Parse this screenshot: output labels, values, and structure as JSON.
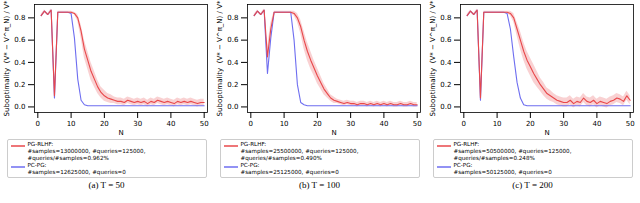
{
  "chart_data": [
    {
      "type": "line",
      "caption": "(a) T = 50",
      "x_label": "N",
      "y_label": "Suboptimality  (V* − V^π_N) / V*",
      "xlim": [
        -1,
        51
      ],
      "xticks": [
        0,
        10,
        20,
        30,
        40,
        50
      ],
      "ylim": [
        -0.05,
        0.92
      ],
      "yticks": [
        {
          "value": 0,
          "label": "0.0"
        },
        {
          "value": 0.2,
          "label": "0.2"
        },
        {
          "value": 0.4,
          "label": "0.4"
        },
        {
          "value": 0.6,
          "label": "0.6"
        },
        {
          "value": 0.8,
          "label": "0.8"
        }
      ],
      "x": [
        1,
        2,
        3,
        4,
        5,
        6,
        7,
        8,
        9,
        10,
        11,
        12,
        13,
        14,
        15,
        16,
        17,
        18,
        19,
        20,
        21,
        22,
        23,
        24,
        25,
        26,
        27,
        28,
        29,
        30,
        31,
        32,
        33,
        34,
        35,
        36,
        37,
        38,
        39,
        40,
        41,
        42,
        43,
        44,
        45,
        46,
        47,
        48,
        49,
        50
      ],
      "series": [
        {
          "name": "PG-RLHF:",
          "detail": "#samples=13000000, #queries=125000, #queries/#samples=0.962%",
          "color": "#e8484b",
          "values": [
            0.82,
            0.86,
            0.83,
            0.87,
            0.1,
            0.85,
            0.85,
            0.85,
            0.85,
            0.85,
            0.84,
            0.8,
            0.68,
            0.52,
            0.42,
            0.32,
            0.25,
            0.18,
            0.13,
            0.1,
            0.08,
            0.07,
            0.06,
            0.05,
            0.05,
            0.04,
            0.06,
            0.05,
            0.04,
            0.05,
            0.04,
            0.05,
            0.03,
            0.05,
            0.04,
            0.06,
            0.05,
            0.04,
            0.05,
            0.04,
            0.03,
            0.05,
            0.04,
            0.05,
            0.04,
            0.05,
            0.04,
            0.03,
            0.04,
            0.04
          ],
          "error": [
            0.01,
            0.01,
            0.01,
            0.01,
            0.03,
            0.01,
            0.01,
            0.01,
            0.01,
            0.01,
            0.01,
            0.03,
            0.06,
            0.08,
            0.08,
            0.08,
            0.07,
            0.06,
            0.05,
            0.05,
            0.04,
            0.04,
            0.03,
            0.03,
            0.03,
            0.03,
            0.03,
            0.03,
            0.03,
            0.03,
            0.03,
            0.03,
            0.03,
            0.03,
            0.03,
            0.03,
            0.03,
            0.03,
            0.03,
            0.03,
            0.03,
            0.03,
            0.03,
            0.03,
            0.03,
            0.03,
            0.03,
            0.03,
            0.03,
            0.03
          ]
        },
        {
          "name": "PC-PG:",
          "detail": "#samples=12625000, #queries=0",
          "color": "#6e6ef0",
          "values": [
            0.82,
            0.86,
            0.83,
            0.87,
            0.08,
            0.85,
            0.85,
            0.85,
            0.85,
            0.84,
            0.62,
            0.25,
            0.06,
            0.02,
            0.01,
            0.01,
            0.01,
            0.01,
            0.01,
            0.01,
            0.01,
            0.01,
            0.01,
            0.01,
            0.01,
            0.01,
            0.01,
            0.01,
            0.01,
            0.01,
            0.01,
            0.01,
            0.01,
            0.01,
            0.01,
            0.01,
            0.01,
            0.01,
            0.01,
            0.01,
            0.01,
            0.01,
            0.01,
            0.01,
            0.01,
            0.01,
            0.01,
            0.01,
            0.01,
            0.01
          ]
        }
      ]
    },
    {
      "type": "line",
      "caption": "(b) T = 100",
      "x_label": "N",
      "y_label": "Suboptimality  (V* − V^π_N) / V*",
      "xlim": [
        -1,
        51
      ],
      "xticks": [
        0,
        10,
        20,
        30,
        40,
        50
      ],
      "ylim": [
        -0.05,
        0.92
      ],
      "yticks": [
        {
          "value": 0,
          "label": "0.0"
        },
        {
          "value": 0.2,
          "label": "0.2"
        },
        {
          "value": 0.4,
          "label": "0.4"
        },
        {
          "value": 0.6,
          "label": "0.6"
        },
        {
          "value": 0.8,
          "label": "0.8"
        }
      ],
      "x": [
        1,
        2,
        3,
        4,
        5,
        6,
        7,
        8,
        9,
        10,
        11,
        12,
        13,
        14,
        15,
        16,
        17,
        18,
        19,
        20,
        21,
        22,
        23,
        24,
        25,
        26,
        27,
        28,
        29,
        30,
        31,
        32,
        33,
        34,
        35,
        36,
        37,
        38,
        39,
        40,
        41,
        42,
        43,
        44,
        45,
        46,
        47,
        48,
        49,
        50
      ],
      "series": [
        {
          "name": "PG-RLHF:",
          "detail": "#samples=25500000, #queries=125000, #queries/#samples=0.490%",
          "color": "#e8484b",
          "values": [
            0.82,
            0.86,
            0.83,
            0.87,
            0.45,
            0.7,
            0.85,
            0.85,
            0.85,
            0.85,
            0.85,
            0.85,
            0.84,
            0.8,
            0.72,
            0.6,
            0.5,
            0.42,
            0.35,
            0.28,
            0.22,
            0.16,
            0.12,
            0.08,
            0.06,
            0.05,
            0.04,
            0.03,
            0.04,
            0.03,
            0.03,
            0.02,
            0.03,
            0.03,
            0.02,
            0.03,
            0.02,
            0.03,
            0.02,
            0.03,
            0.02,
            0.03,
            0.02,
            0.02,
            0.03,
            0.02,
            0.02,
            0.03,
            0.02,
            0.02
          ],
          "error": [
            0.01,
            0.01,
            0.01,
            0.01,
            0.08,
            0.05,
            0.01,
            0.01,
            0.01,
            0.01,
            0.01,
            0.01,
            0.02,
            0.04,
            0.06,
            0.08,
            0.08,
            0.08,
            0.07,
            0.07,
            0.06,
            0.05,
            0.04,
            0.03,
            0.03,
            0.02,
            0.02,
            0.02,
            0.02,
            0.02,
            0.02,
            0.02,
            0.02,
            0.02,
            0.02,
            0.02,
            0.02,
            0.02,
            0.02,
            0.02,
            0.02,
            0.02,
            0.02,
            0.02,
            0.02,
            0.02,
            0.02,
            0.02,
            0.02,
            0.02
          ]
        },
        {
          "name": "PC-PG:",
          "detail": "#samples=25125000, #queries=0",
          "color": "#6e6ef0",
          "values": [
            0.82,
            0.86,
            0.83,
            0.87,
            0.3,
            0.62,
            0.85,
            0.85,
            0.85,
            0.85,
            0.85,
            0.85,
            0.6,
            0.2,
            0.04,
            0.02,
            0.01,
            0.01,
            0.01,
            0.01,
            0.01,
            0.01,
            0.01,
            0.01,
            0.01,
            0.01,
            0.01,
            0.01,
            0.01,
            0.01,
            0.01,
            0.01,
            0.01,
            0.01,
            0.01,
            0.01,
            0.01,
            0.01,
            0.01,
            0.01,
            0.01,
            0.01,
            0.01,
            0.01,
            0.01,
            0.01,
            0.01,
            0.01,
            0.01,
            0.01
          ]
        }
      ]
    },
    {
      "type": "line",
      "caption": "(c) T = 200",
      "x_label": "N",
      "y_label": "Suboptimality  (V* − V^π_N) / V*",
      "xlim": [
        -1,
        51
      ],
      "xticks": [
        0,
        10,
        20,
        30,
        40,
        50
      ],
      "ylim": [
        -0.05,
        0.92
      ],
      "yticks": [
        {
          "value": 0,
          "label": "0.0"
        },
        {
          "value": 0.2,
          "label": "0.2"
        },
        {
          "value": 0.4,
          "label": "0.4"
        },
        {
          "value": 0.6,
          "label": "0.6"
        },
        {
          "value": 0.8,
          "label": "0.8"
        }
      ],
      "x": [
        1,
        2,
        3,
        4,
        5,
        6,
        7,
        8,
        9,
        10,
        11,
        12,
        13,
        14,
        15,
        16,
        17,
        18,
        19,
        20,
        21,
        22,
        23,
        24,
        25,
        26,
        27,
        28,
        29,
        30,
        31,
        32,
        33,
        34,
        35,
        36,
        37,
        38,
        39,
        40,
        41,
        42,
        43,
        44,
        45,
        46,
        47,
        48,
        49,
        50
      ],
      "series": [
        {
          "name": "PG-RLHF:",
          "detail": "#samples=50500000, #queries=125000, #queries/#samples=0.248%",
          "color": "#e8484b",
          "values": [
            0.82,
            0.86,
            0.83,
            0.87,
            0.08,
            0.85,
            0.85,
            0.85,
            0.85,
            0.85,
            0.85,
            0.85,
            0.85,
            0.84,
            0.8,
            0.7,
            0.6,
            0.5,
            0.42,
            0.36,
            0.3,
            0.25,
            0.2,
            0.16,
            0.12,
            0.1,
            0.08,
            0.06,
            0.05,
            0.04,
            0.04,
            0.06,
            0.03,
            0.05,
            0.04,
            0.08,
            0.05,
            0.04,
            0.06,
            0.03,
            0.05,
            0.04,
            0.03,
            0.05,
            0.06,
            0.08,
            0.07,
            0.05,
            0.1,
            0.06
          ],
          "error": [
            0.01,
            0.01,
            0.01,
            0.01,
            0.03,
            0.01,
            0.01,
            0.01,
            0.01,
            0.01,
            0.01,
            0.01,
            0.01,
            0.02,
            0.04,
            0.06,
            0.08,
            0.08,
            0.08,
            0.08,
            0.08,
            0.07,
            0.06,
            0.06,
            0.05,
            0.05,
            0.04,
            0.04,
            0.04,
            0.04,
            0.04,
            0.04,
            0.04,
            0.04,
            0.04,
            0.04,
            0.04,
            0.04,
            0.04,
            0.04,
            0.04,
            0.04,
            0.04,
            0.04,
            0.04,
            0.04,
            0.04,
            0.04,
            0.04,
            0.04
          ]
        },
        {
          "name": "PC-PG:",
          "detail": "#samples=50125000, #queries=0",
          "color": "#6e6ef0",
          "values": [
            0.82,
            0.86,
            0.83,
            0.87,
            0.06,
            0.85,
            0.85,
            0.85,
            0.85,
            0.85,
            0.85,
            0.85,
            0.84,
            0.7,
            0.45,
            0.22,
            0.08,
            0.02,
            0.01,
            0.01,
            0.01,
            0.01,
            0.01,
            0.01,
            0.01,
            0.01,
            0.01,
            0.01,
            0.01,
            0.01,
            0.01,
            0.01,
            0.01,
            0.01,
            0.01,
            0.01,
            0.01,
            0.01,
            0.01,
            0.01,
            0.01,
            0.01,
            0.01,
            0.01,
            0.01,
            0.01,
            0.01,
            0.01,
            0.01,
            0.01
          ]
        }
      ]
    }
  ]
}
